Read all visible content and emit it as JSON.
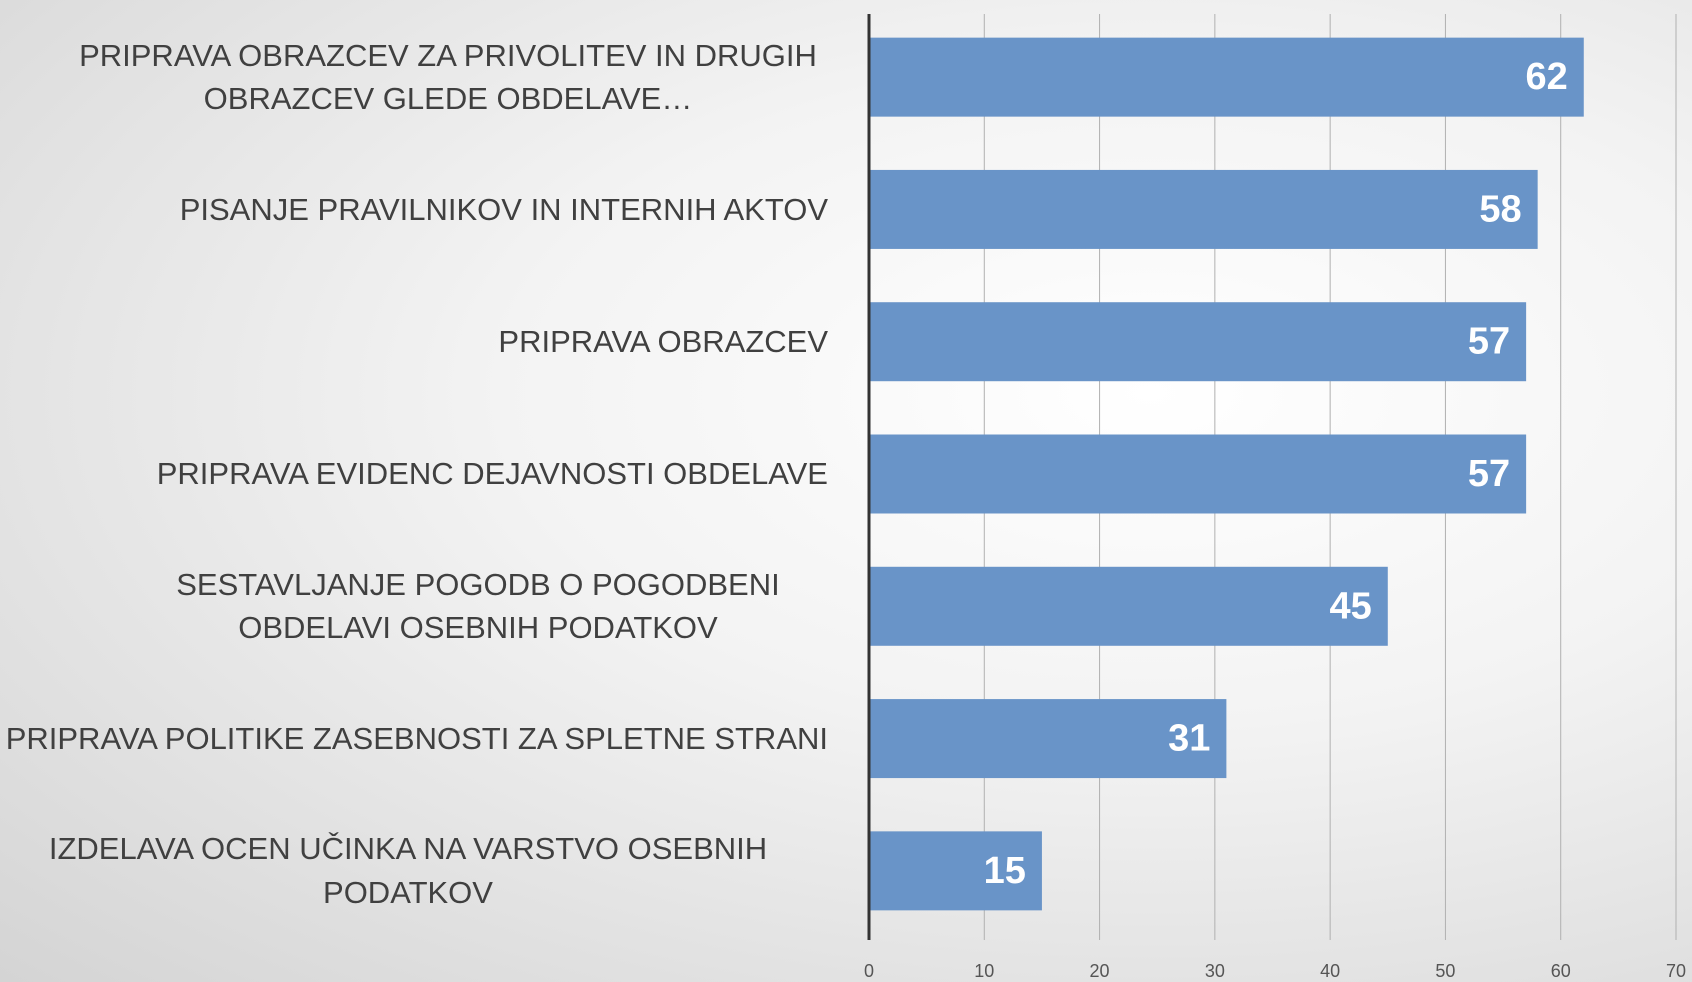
{
  "chart_data": {
    "type": "barh",
    "categories": [
      "PRIPRAVA OBRAZCEV ZA PRIVOLITEV IN DRUGIH OBRAZCEV GLEDE OBDELAVE…",
      "PISANJE PRAVILNIKOV IN INTERNIH AKTOV",
      "PRIPRAVA OBRAZCEV",
      "PRIPRAVA EVIDENC DEJAVNOSTI OBDELAVE",
      "SESTAVLJANJE POGODB O POGODBENI OBDELAVI OSEBNIH PODATKOV",
      "PRIPRAVA POLITIKE ZASEBNOSTI ZA SPLETNE STRANI",
      "IZDELAVA OCEN UČINKA NA VARSTVO OSEBNIH PODATKOV"
    ],
    "values": [
      62,
      58,
      57,
      57,
      45,
      31,
      15
    ],
    "color": "#6994c8",
    "xlim": [
      0,
      70
    ],
    "xticks": [
      0,
      10,
      20,
      30,
      40,
      50,
      60,
      70
    ],
    "grid": true
  }
}
